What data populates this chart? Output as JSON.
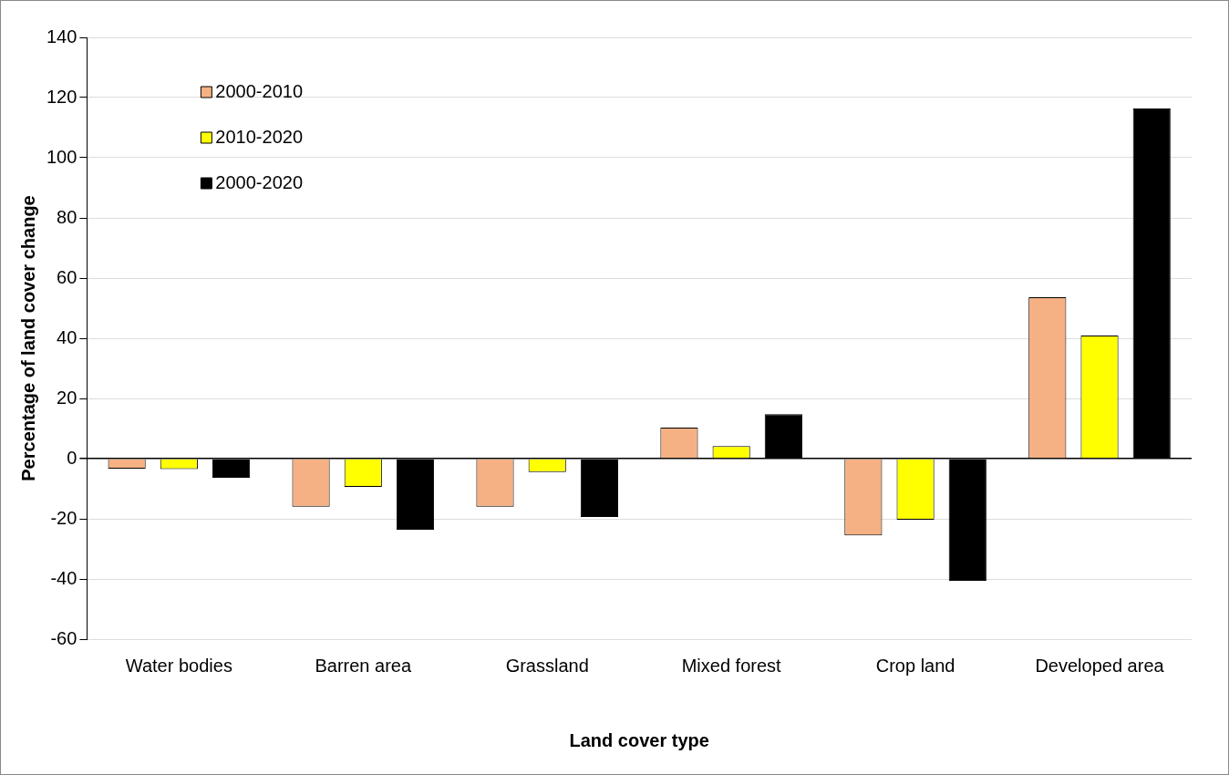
{
  "chart_data": {
    "type": "bar",
    "xlabel": "Land cover type",
    "ylabel": "Percentage of land cover change",
    "categories": [
      "Water bodies",
      "Barren area",
      "Grassland",
      "Mixed forest",
      "Crop land",
      "Developed area"
    ],
    "series": [
      {
        "name": "2000-2010",
        "color": "#f5b183",
        "values": [
          -3.3,
          -16,
          -16,
          10.3,
          -25.5,
          53.6
        ]
      },
      {
        "name": "2010-2020",
        "color": "#ffff00",
        "values": [
          -3.5,
          -9.4,
          -4.5,
          4.2,
          -20.3,
          40.9
        ]
      },
      {
        "name": "2000-2020",
        "color": "#000000",
        "values": [
          -6.4,
          -23.6,
          -19.4,
          14.8,
          -40.6,
          116.4
        ]
      }
    ],
    "ylim": [
      -60,
      140
    ],
    "yticks": [
      -60,
      -40,
      -20,
      0,
      20,
      40,
      60,
      80,
      100,
      120,
      140
    ],
    "grid": "y",
    "legend": "top left"
  }
}
